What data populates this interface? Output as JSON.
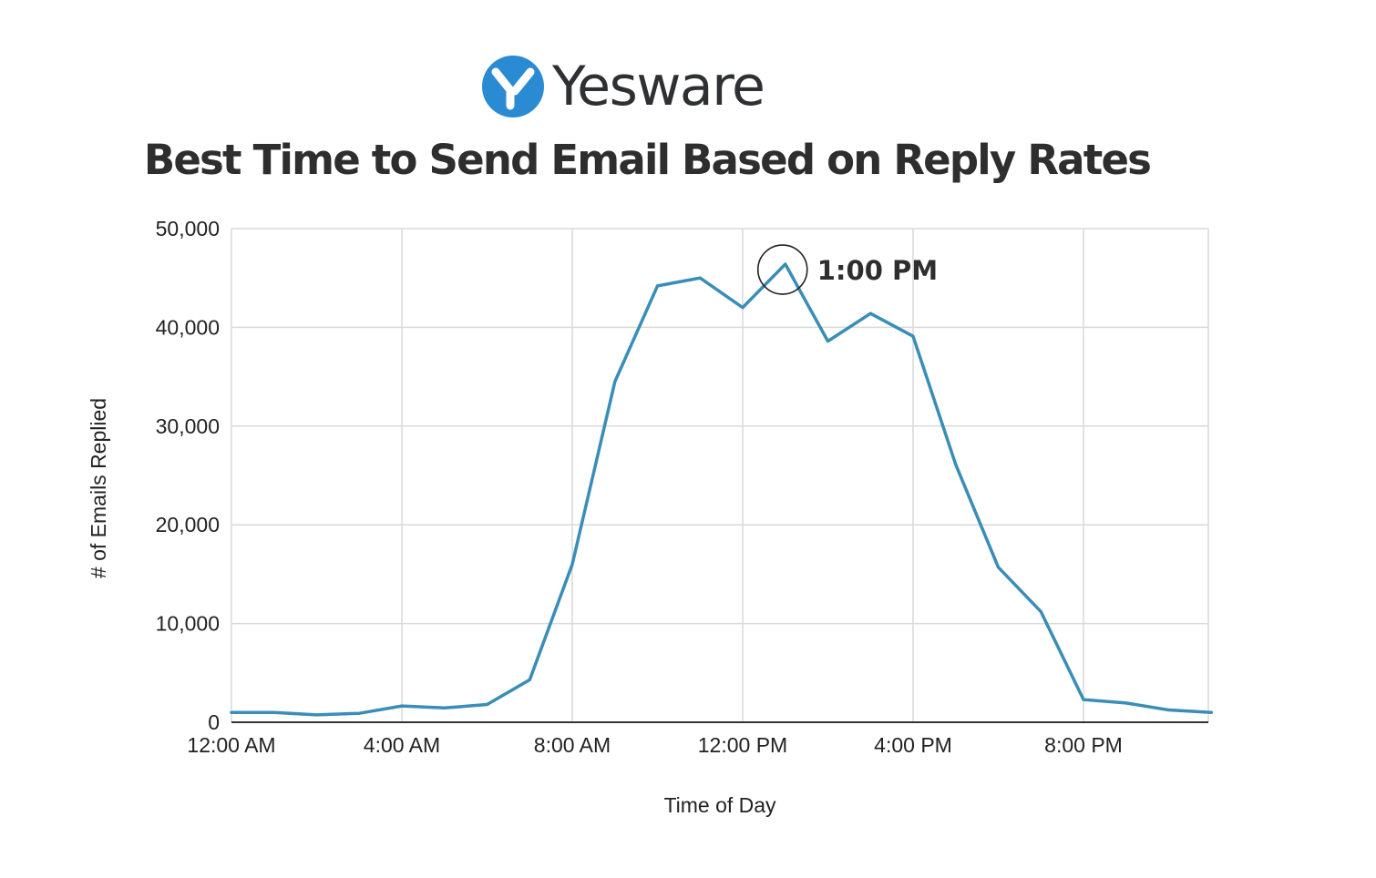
{
  "brand": {
    "name": "Yesware",
    "logo_icon": "yesware-y-logo-icon",
    "logo_color": "#2a8bd3"
  },
  "colors": {
    "line": "#3a8db7",
    "grid": "#d9d9d9",
    "axis": "#333333",
    "annotation_ring": "#222222"
  },
  "chart_data": {
    "type": "line",
    "title": "Best Time to Send Email Based on Reply Rates",
    "xlabel": "Time of Day",
    "ylabel": "# of Emails Replied",
    "x_ticks": [
      "12:00 AM",
      "4:00 AM",
      "8:00 AM",
      "12:00 PM",
      "4:00 PM",
      "8:00 PM"
    ],
    "y_ticks": [
      "0",
      "10,000",
      "20,000",
      "30,000",
      "40,000",
      "50,000"
    ],
    "ylim": [
      0,
      50000
    ],
    "x_unit": "hour of day",
    "xlim": [
      0,
      23
    ],
    "grid": true,
    "series": [
      {
        "x": [
          0,
          1,
          2,
          3,
          4,
          5,
          6,
          7,
          8,
          9,
          10,
          11,
          12,
          13,
          14,
          15,
          16,
          17,
          18,
          19,
          20,
          21,
          22,
          23
        ],
        "values": [
          1000,
          1000,
          750,
          900,
          1650,
          1450,
          1800,
          4300,
          16000,
          34500,
          44200,
          45000,
          42000,
          46400,
          38600,
          41400,
          39100,
          26100,
          15700,
          11200,
          2300,
          1950,
          1250,
          1000
        ]
      }
    ],
    "annotations": [
      {
        "x": 13,
        "y": 46400,
        "text": "1:00 PM"
      }
    ]
  }
}
